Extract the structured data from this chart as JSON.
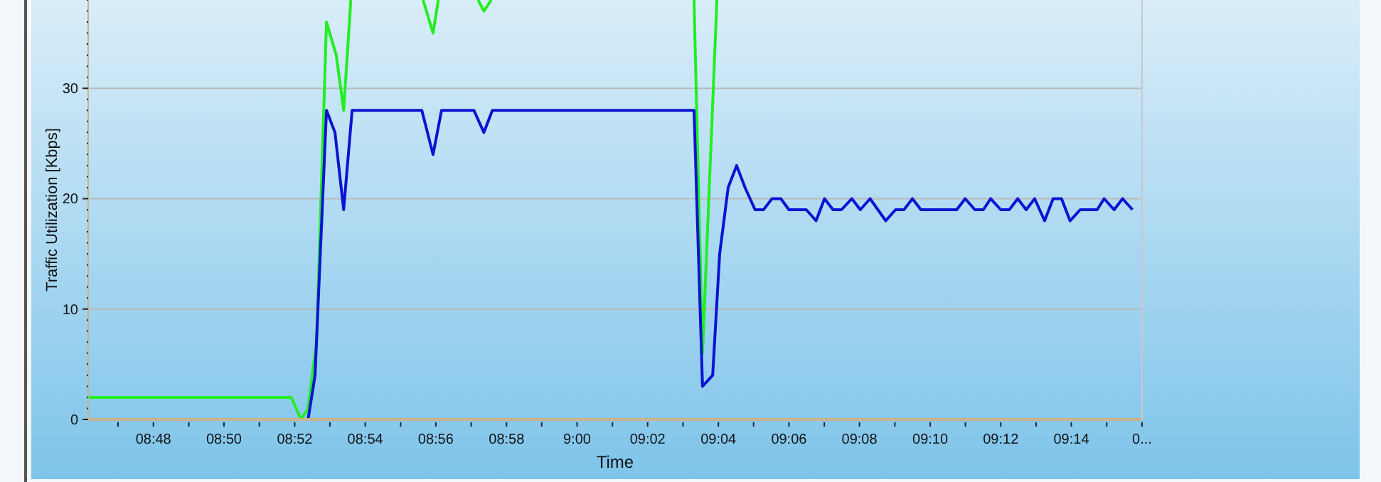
{
  "chart_data": {
    "type": "line",
    "xlabel": "Time",
    "ylabel": "Traffic Utilization [Kbps]",
    "xlim": [
      8.7692,
      9.2667
    ],
    "ylim": [
      0,
      38
    ],
    "xticks": [
      {
        "value": 8.7833,
        "label": null
      },
      {
        "value": 8.8,
        "label": "08:48"
      },
      {
        "value": 8.8167,
        "label": null
      },
      {
        "value": 8.8333,
        "label": "08:50"
      },
      {
        "value": 8.85,
        "label": null
      },
      {
        "value": 8.8667,
        "label": "08:52"
      },
      {
        "value": 8.8833,
        "label": null
      },
      {
        "value": 8.9,
        "label": "08:54"
      },
      {
        "value": 8.9167,
        "label": null
      },
      {
        "value": 8.9333,
        "label": "08:56"
      },
      {
        "value": 8.95,
        "label": null
      },
      {
        "value": 8.9667,
        "label": "08:58"
      },
      {
        "value": 8.9833,
        "label": null
      },
      {
        "value": 9.0,
        "label": "9:00"
      },
      {
        "value": 9.0167,
        "label": null
      },
      {
        "value": 9.0333,
        "label": "09:02"
      },
      {
        "value": 9.05,
        "label": null
      },
      {
        "value": 9.0667,
        "label": "09:04"
      },
      {
        "value": 9.0833,
        "label": null
      },
      {
        "value": 9.1,
        "label": "09:06"
      },
      {
        "value": 9.1167,
        "label": null
      },
      {
        "value": 9.1333,
        "label": "09:08"
      },
      {
        "value": 9.15,
        "label": null
      },
      {
        "value": 9.1667,
        "label": "09:10"
      },
      {
        "value": 9.1833,
        "label": null
      },
      {
        "value": 9.2,
        "label": "09:12"
      },
      {
        "value": 9.2167,
        "label": null
      },
      {
        "value": 9.2333,
        "label": "09:14"
      },
      {
        "value": 9.25,
        "label": null
      },
      {
        "value": 9.2667,
        "label": "0..."
      }
    ],
    "yticks": [
      0,
      {
        "value": 1,
        "label": null
      },
      {
        "value": 2,
        "label": null
      },
      {
        "value": 3,
        "label": null
      },
      {
        "value": 4,
        "label": null
      },
      {
        "value": 5,
        "label": null
      },
      {
        "value": 6,
        "label": null
      },
      {
        "value": 7,
        "label": null
      },
      {
        "value": 8,
        "label": null
      },
      {
        "value": 9,
        "label": null
      },
      10,
      {
        "value": 11,
        "label": null
      },
      {
        "value": 12,
        "label": null
      },
      {
        "value": 13,
        "label": null
      },
      {
        "value": 14,
        "label": null
      },
      {
        "value": 15,
        "label": null
      },
      {
        "value": 16,
        "label": null
      },
      {
        "value": 17,
        "label": null
      },
      {
        "value": 18,
        "label": null
      },
      {
        "value": 19,
        "label": null
      },
      20,
      {
        "value": 21,
        "label": null
      },
      {
        "value": 22,
        "label": null
      },
      {
        "value": 23,
        "label": null
      },
      {
        "value": 24,
        "label": null
      },
      {
        "value": 25,
        "label": null
      },
      {
        "value": 26,
        "label": null
      },
      {
        "value": 27,
        "label": null
      },
      {
        "value": 28,
        "label": null
      },
      {
        "value": 29,
        "label": null
      },
      30,
      {
        "value": 31,
        "label": null
      },
      {
        "value": 32,
        "label": null
      },
      {
        "value": 33,
        "label": null
      },
      {
        "value": 34,
        "label": null
      },
      {
        "value": 35,
        "label": null
      },
      {
        "value": 36,
        "label": null
      },
      {
        "value": 37,
        "label": null
      },
      {
        "value": 38,
        "label": null
      }
    ],
    "grid": "y",
    "marker": "none",
    "line_style": "solid",
    "series": [
      {
        "color": "#22ee22",
        "x": [
          8.7692,
          8.865,
          8.8697,
          8.873,
          8.877,
          8.8817,
          8.8863,
          8.8898,
          8.8932,
          8.91,
          8.9273,
          8.932,
          8.9345,
          8.944,
          8.9533,
          8.956,
          8.9595,
          9.0,
          9.0552,
          9.0592,
          9.066
        ],
        "values": [
          2,
          2,
          0,
          1,
          7,
          36,
          33,
          28,
          38,
          null,
          38,
          35,
          38,
          null,
          38,
          37,
          38,
          null,
          38,
          6,
          38
        ]
      },
      {
        "color": "#0a14d2",
        "x": [
          8.7692,
          8.873,
          8.8763,
          8.8817,
          8.8857,
          8.8898,
          8.8938,
          8.9267,
          8.932,
          8.936,
          8.9513,
          8.956,
          8.96,
          9.0552,
          9.0592,
          9.064,
          9.0673,
          9.0713,
          9.0753,
          9.0793,
          9.084,
          9.088,
          9.092,
          9.0962,
          9.1,
          9.1082,
          9.1128,
          9.1168,
          9.1208,
          9.1248,
          9.1297,
          9.1337,
          9.1383,
          9.142,
          9.1457,
          9.1503,
          9.1543,
          9.1583,
          9.1623,
          9.1792,
          9.1832,
          9.1878,
          9.1918,
          9.1952,
          9.2,
          9.204,
          9.208,
          9.212,
          9.216,
          9.2207,
          9.2247,
          9.2287,
          9.2327,
          9.2375,
          9.2455,
          9.2488,
          9.2535,
          9.2575,
          9.2622
        ],
        "values": [
          0,
          0,
          4,
          28,
          26,
          19,
          28,
          28,
          24,
          28,
          28,
          26,
          28,
          28,
          3,
          4,
          15,
          21,
          23,
          21,
          19,
          19,
          20,
          20,
          19,
          19,
          18,
          20,
          19,
          19,
          20,
          19,
          20,
          19,
          18,
          19,
          19,
          20,
          19,
          19,
          20,
          19,
          19,
          20,
          19,
          19,
          20,
          19,
          20,
          18,
          20,
          20,
          18,
          19,
          19,
          20,
          19,
          20,
          19
        ]
      }
    ]
  }
}
